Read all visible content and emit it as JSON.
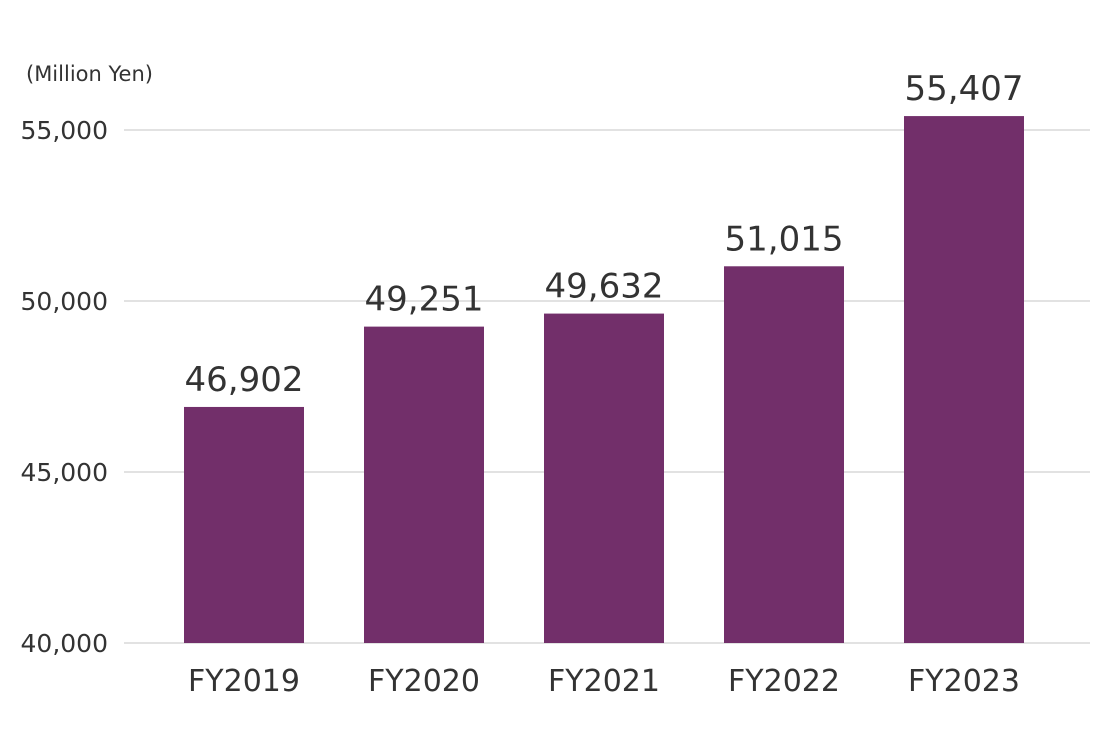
{
  "chart_data": {
    "type": "bar",
    "unit_label": "(Million Yen)",
    "categories": [
      "FY2019",
      "FY2020",
      "FY2021",
      "FY2022",
      "FY2023"
    ],
    "values": [
      46902,
      49251,
      49632,
      51015,
      55407
    ],
    "value_labels": [
      "46,902",
      "49,251",
      "49,632",
      "51,015",
      "55,407"
    ],
    "ylim": [
      40000,
      55000
    ],
    "yticks": [
      40000,
      45000,
      50000,
      55000
    ],
    "ytick_labels": [
      "40,000",
      "45,000",
      "50,000",
      "55,000"
    ],
    "grid": true,
    "bar_color": "#722f6a",
    "title": "",
    "xlabel": "",
    "ylabel": ""
  }
}
